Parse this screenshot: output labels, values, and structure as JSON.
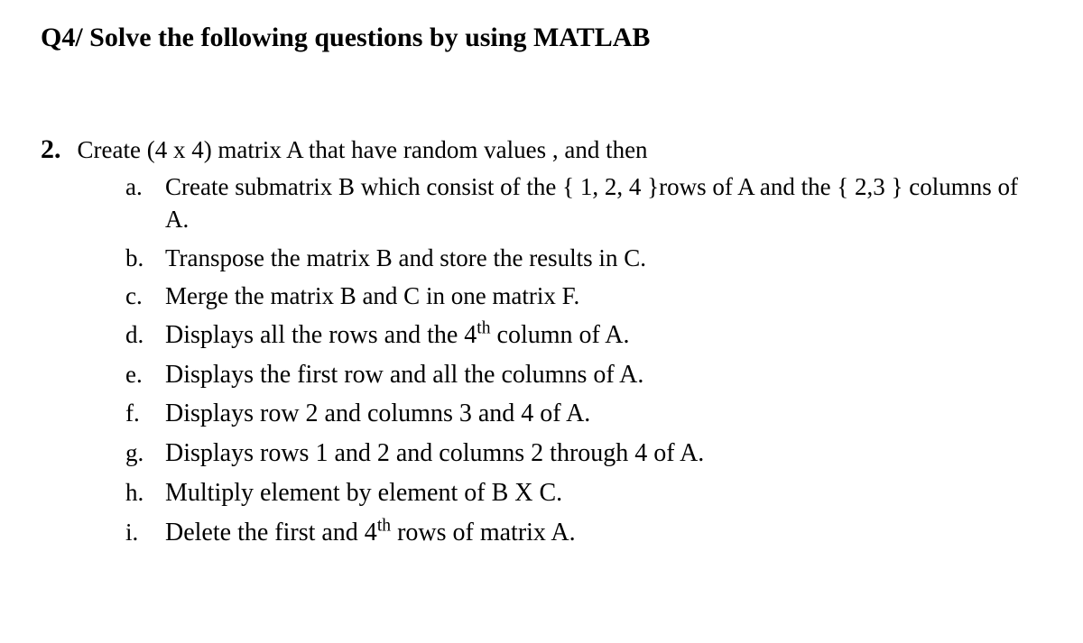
{
  "heading": "Q4/ Solve the following questions by using MATLAB",
  "question": {
    "number": "2.",
    "intro": "Create (4 x 4) matrix A that have random values , and then",
    "items": [
      {
        "label": "a.",
        "text_parts": [
          "Create submatrix B which consist of the { 1, 2, 4 }rows of A and the { 2,3 } columns of A."
        ]
      },
      {
        "label": "b.",
        "text_parts": [
          "Transpose the matrix B and store the results in C."
        ]
      },
      {
        "label": "c.",
        "text_parts": [
          "Merge the matrix B and C in one matrix F."
        ]
      },
      {
        "label": "d.",
        "text_parts": [
          "Displays  all  the rows and the  4",
          "th",
          "  column of A."
        ]
      },
      {
        "label": "e.",
        "text_parts": [
          "Displays  the  first row and all  the columns  of A."
        ]
      },
      {
        "label": "f.",
        "text_parts": [
          "Displays row 2 and columns 3 and 4 of A."
        ]
      },
      {
        "label": "g.",
        "text_parts": [
          "Displays rows 1 and 2 and columns 2 through 4 of A."
        ]
      },
      {
        "label": "h.",
        "text_parts": [
          "Multiply element by element of B X C."
        ]
      },
      {
        "label": "i.",
        "text_parts": [
          "Delete the first and 4",
          "th",
          " rows of matrix A."
        ]
      }
    ]
  },
  "styles": {
    "font_family": "Times New Roman",
    "text_color": "#000000",
    "background_color": "#ffffff",
    "heading_fontsize": 30,
    "body_fontsize": 27,
    "larger_fontsize": 28,
    "heading_weight": "bold"
  }
}
